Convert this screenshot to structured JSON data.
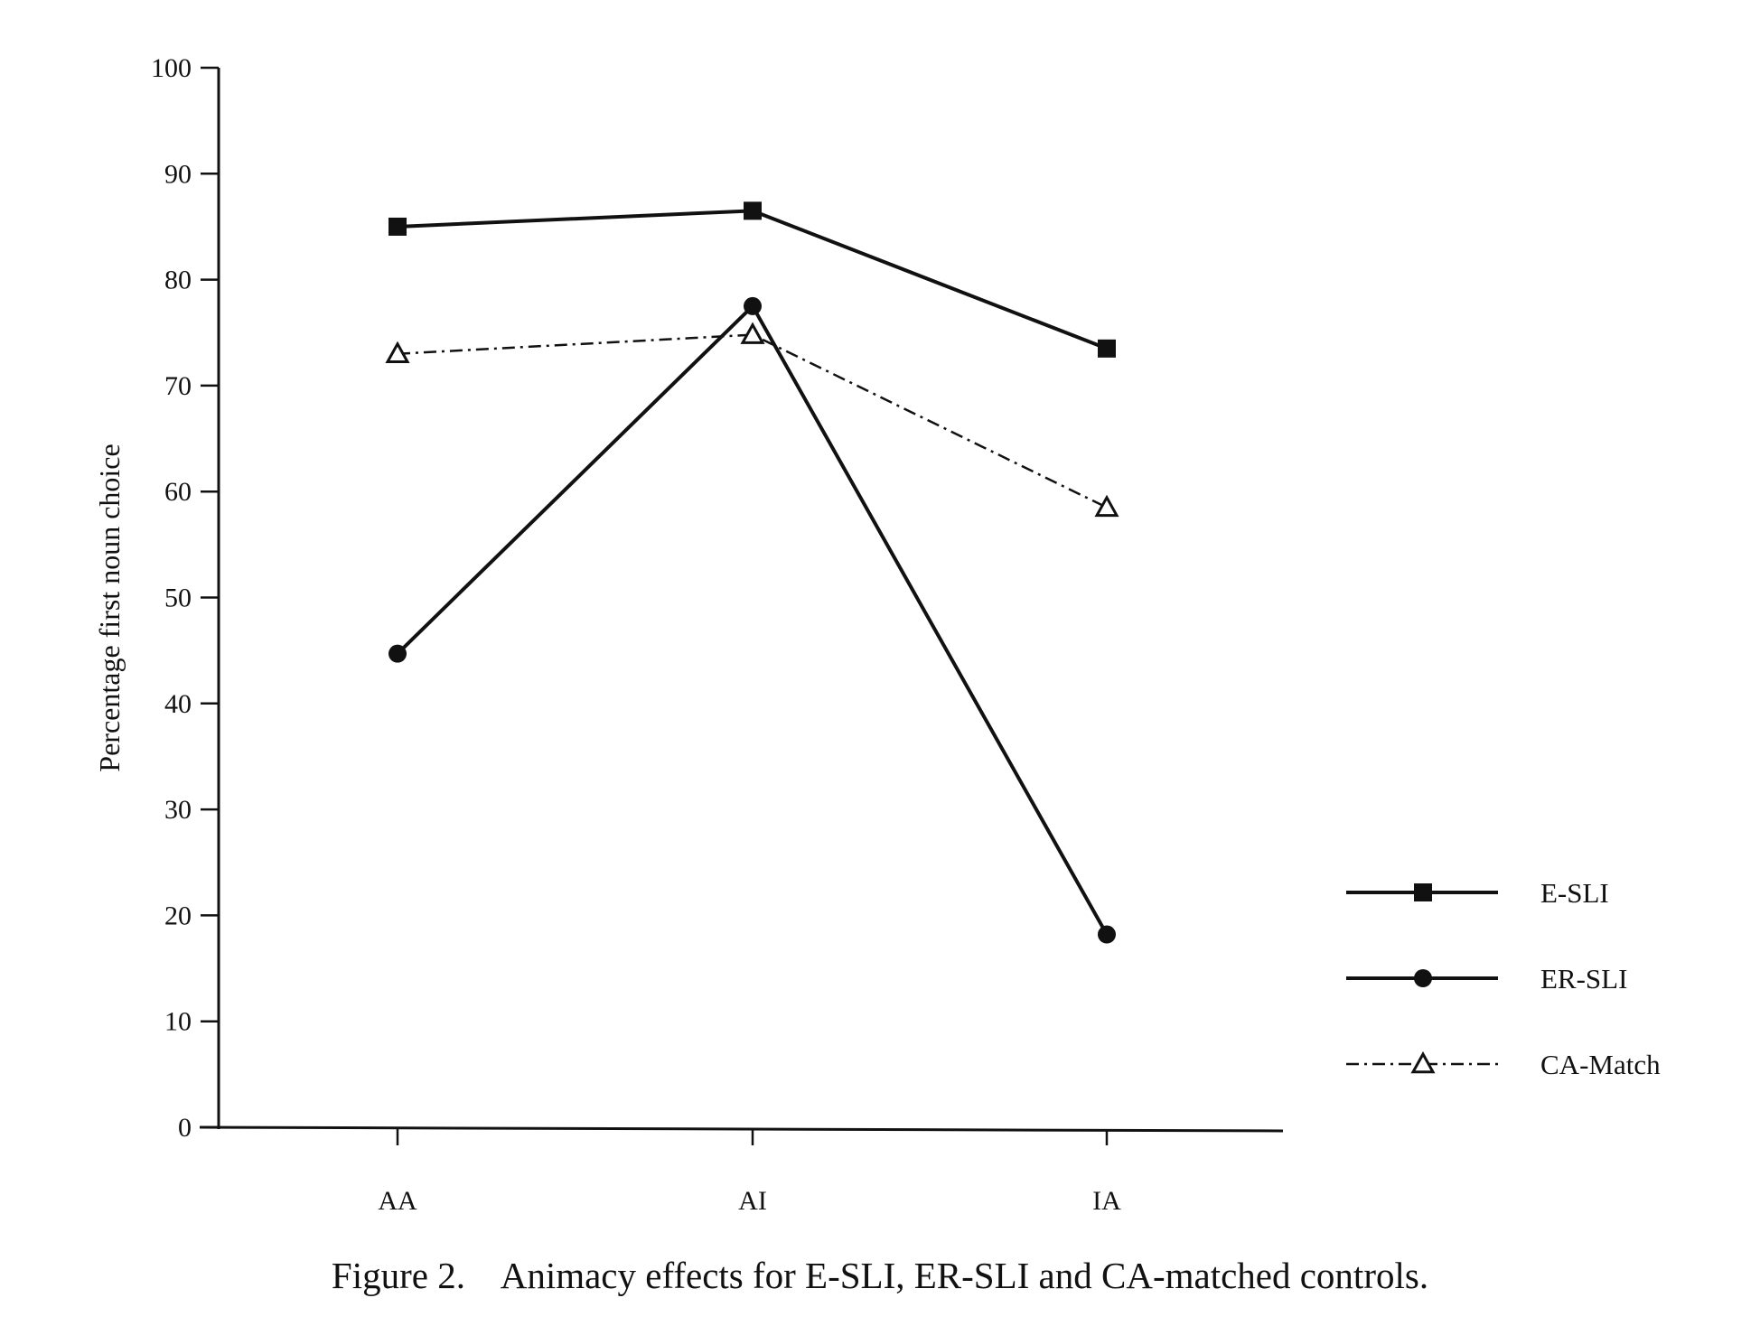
{
  "chart_data": {
    "type": "line",
    "categories": [
      "AA",
      "AI",
      "IA"
    ],
    "ylabel": "Percentage first noun choice",
    "xlabel": "",
    "ylim": [
      0,
      100
    ],
    "yticks": [
      0,
      10,
      20,
      30,
      40,
      50,
      60,
      70,
      80,
      90,
      100
    ],
    "grid": false,
    "legend_position": "right",
    "series": [
      {
        "name": "E-SLI",
        "values": [
          85,
          86.5,
          73.5
        ],
        "marker": "filled-square",
        "line": "solid",
        "color": "#111111"
      },
      {
        "name": "ER-SLI",
        "values": [
          44.7,
          77.5,
          18.2
        ],
        "marker": "filled-circle",
        "line": "solid",
        "color": "#111111"
      },
      {
        "name": "CA-Match",
        "values": [
          73,
          74.8,
          58.5
        ],
        "marker": "open-triangle",
        "line": "dash-dot",
        "color": "#111111"
      }
    ]
  },
  "caption": "Figure 2.    Animacy effects for E-SLI, ER-SLI and CA-matched controls."
}
